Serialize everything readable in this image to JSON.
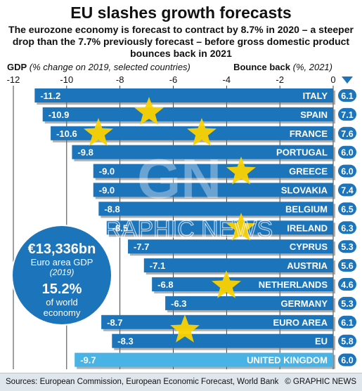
{
  "header": {
    "title": "EU slashes growth forecasts",
    "subtitle": "The eurozone economy is forecast to contract by 8.7% in 2020 – a steeper drop than the 7.7% previously forecast – before gross domestic product bounces back in 2021"
  },
  "axis_labels": {
    "left_bold": "GDP",
    "left_italic": "(% change on 2019, selected countries)",
    "right_bold": "Bounce back",
    "right_italic": "(%, 2021)"
  },
  "callout": {
    "amount": "€13,336bn",
    "label": "Euro area GDP",
    "year": "(2019)",
    "share": "15.2%",
    "share_line1": "of world",
    "share_line2": "economy"
  },
  "footer": {
    "source": "Sources: European Commission, European Economic Forecast, World Bank",
    "credit": "© GRAPHIC NEWS"
  },
  "watermark": {
    "logo": "GN",
    "text": "GRAPHIC NEWS"
  },
  "colors": {
    "bar_blue": "#1c74bb",
    "uk_bar": "#49b3e6",
    "star_yellow": "#fbd200",
    "footer_bg": "#dfe6ec"
  },
  "chart_data": {
    "type": "bar",
    "orientation": "horizontal",
    "xlim": [
      -12,
      0
    ],
    "x_ticks": [
      -12,
      -10,
      -8,
      -6,
      -4,
      -2,
      0
    ],
    "grid": true,
    "categories": [
      "ITALY",
      "SPAIN",
      "FRANCE",
      "PORTUGAL",
      "GREECE",
      "SLOVAKIA",
      "BELGIUM",
      "IRELAND",
      "CYPRUS",
      "AUSTRIA",
      "NETHERLANDS",
      "GERMANY",
      "EURO AREA",
      "EU",
      "UNITED KINGDOM"
    ],
    "series": [
      {
        "name": "GDP",
        "values": [
          -11.2,
          -10.9,
          -10.6,
          -9.8,
          -9.0,
          -9.0,
          -8.8,
          -8.5,
          -7.7,
          -7.1,
          -6.8,
          -6.3,
          -8.7,
          -8.3,
          -9.7
        ],
        "labels": [
          "-11.2",
          "-10.9",
          "-10.6",
          "-9.8",
          "-9.0",
          "-9.0",
          "-8.8",
          "-8.5",
          "-7.7",
          "-7.1",
          "-6.8",
          "-6.3",
          "-8.7",
          "-8.3",
          "-9.7"
        ]
      },
      {
        "name": "Bounce back",
        "values": [
          6.1,
          7.1,
          7.6,
          6.0,
          6.0,
          7.4,
          6.5,
          6.3,
          5.3,
          5.6,
          4.6,
          5.3,
          6.1,
          5.8,
          6.0
        ],
        "labels": [
          "6.1",
          "7.1",
          "7.6",
          "6.0",
          "6.0",
          "7.4",
          "6.5",
          "6.3",
          "5.3",
          "5.6",
          "4.6",
          "5.3",
          "6.1",
          "5.8",
          "6.0"
        ]
      }
    ],
    "highlight": "UNITED KINGDOM"
  }
}
